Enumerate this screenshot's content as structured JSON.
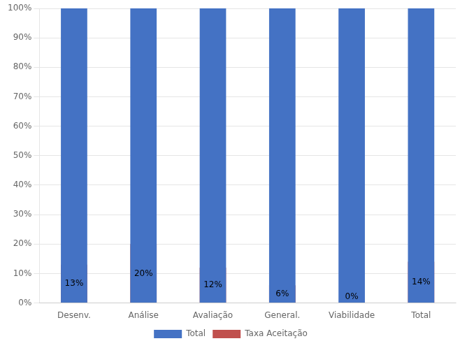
{
  "chart_data": {
    "type": "bar",
    "categories": [
      "Desenv.",
      "Análise",
      "Avaliação",
      "General.",
      "Viabilidade",
      "Total"
    ],
    "series": [
      {
        "name": "Total",
        "color": "#4472C4",
        "values": [
          100,
          100,
          100,
          100,
          100,
          100
        ]
      },
      {
        "name": "Taxa Aceitação",
        "color": "#C0504D",
        "values": [
          13,
          20,
          12,
          6,
          0,
          14
        ],
        "value_labels": [
          "13%",
          "20%",
          "12%",
          "6%",
          "0%",
          "14%"
        ]
      }
    ],
    "ylim": [
      0,
      100
    ],
    "yticks": [
      {
        "value": 0,
        "label": "0%"
      },
      {
        "value": 10,
        "label": "10%"
      },
      {
        "value": 20,
        "label": "20%"
      },
      {
        "value": 30,
        "label": "30%"
      },
      {
        "value": 40,
        "label": "40%"
      },
      {
        "value": 50,
        "label": "50%"
      },
      {
        "value": 60,
        "label": "60%"
      },
      {
        "value": 70,
        "label": "70%"
      },
      {
        "value": 80,
        "label": "80%"
      },
      {
        "value": 90,
        "label": "90%"
      },
      {
        "value": 100,
        "label": "100%"
      }
    ],
    "grid": true,
    "legend": "bottom",
    "data_labels": true
  }
}
